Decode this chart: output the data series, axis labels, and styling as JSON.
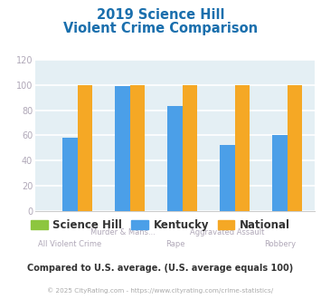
{
  "title_line1": "2019 Science Hill",
  "title_line2": "Violent Crime Comparison",
  "title_color": "#1a6fad",
  "categories": [
    "All Violent Crime",
    "Murder & Mans...",
    "Rape",
    "Aggravated Assault",
    "Robbery"
  ],
  "cat_line1": [
    "",
    "Murder & Mans...",
    "",
    "Aggravated Assault",
    ""
  ],
  "cat_line2": [
    "All Violent Crime",
    "",
    "Rape",
    "",
    "Robbery"
  ],
  "science_hill": [
    0,
    0,
    0,
    0,
    0
  ],
  "kentucky": [
    58,
    99,
    83,
    52,
    60
  ],
  "national": [
    100,
    100,
    100,
    100,
    100
  ],
  "colors": {
    "science_hill": "#8dc63f",
    "kentucky": "#4b9fe8",
    "national": "#f5a825"
  },
  "ylim": [
    0,
    120
  ],
  "yticks": [
    0,
    20,
    40,
    60,
    80,
    100,
    120
  ],
  "background_color": "#e4eff4",
  "grid_color": "#ffffff",
  "legend_labels": [
    "Science Hill",
    "Kentucky",
    "National"
  ],
  "note": "Compared to U.S. average. (U.S. average equals 100)",
  "note_color": "#333333",
  "copyright": "© 2025 CityRating.com - https://www.cityrating.com/crime-statistics/",
  "copyright_color": "#aaaaaa",
  "tick_color": "#b0a8b8"
}
